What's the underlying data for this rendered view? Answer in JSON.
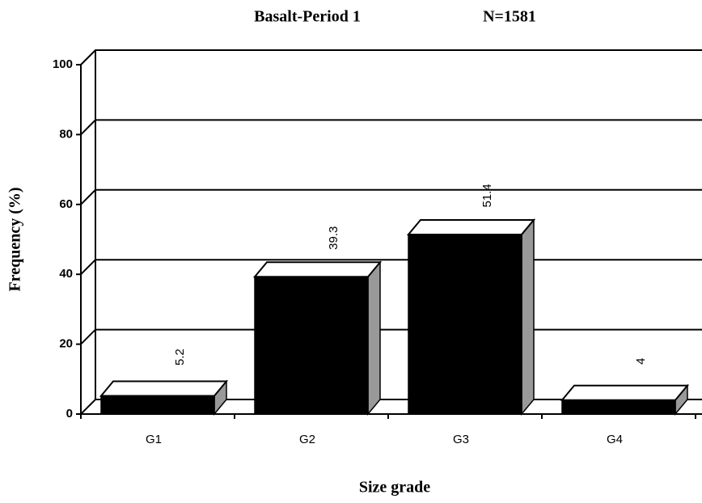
{
  "chart_data": {
    "type": "bar3d",
    "title": "Basalt-Period 1",
    "annotation": "N=1581",
    "x_label": "Size grade",
    "y_label": "Frequency (%)",
    "categories": [
      "G1",
      "G2",
      "G3",
      "G4"
    ],
    "values": [
      5.2,
      39.3,
      51.4,
      4
    ],
    "color": "#000000",
    "ylim": [
      0,
      100
    ],
    "yticks": [
      0,
      20,
      40,
      60,
      80,
      100
    ],
    "grid": true
  }
}
